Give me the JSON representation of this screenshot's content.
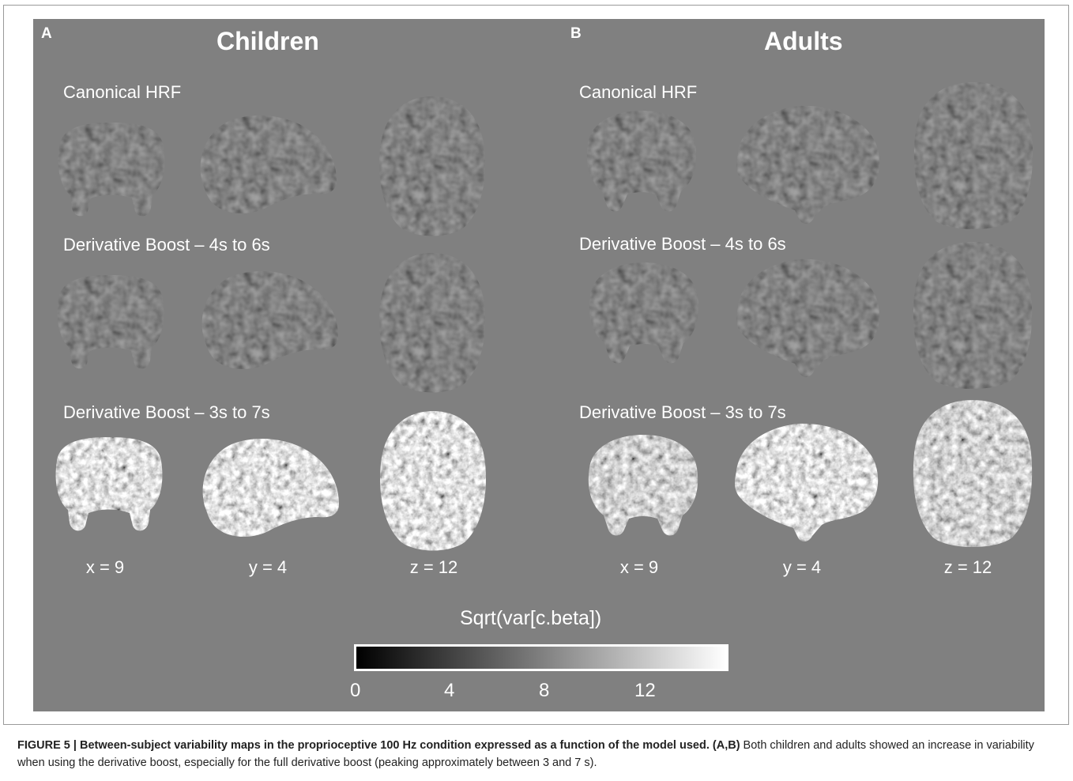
{
  "panels": {
    "a": {
      "letter": "A",
      "title": "Children"
    },
    "b": {
      "letter": "B",
      "title": "Adults"
    }
  },
  "rows": [
    "Canonical HRF",
    "Derivative Boost – 4s to 6s",
    "Derivative Boost – 3s to 7s"
  ],
  "coords": [
    "x = 9",
    "y = 4",
    "z = 12"
  ],
  "colorbar": {
    "title": "Sqrt(var[c.beta])",
    "ticks": [
      "0",
      "4",
      "8",
      "12"
    ],
    "colors": {
      "low": "#000000",
      "high": "#ffffff"
    }
  },
  "caption": {
    "bold": "FIGURE 5 | Between-subject variability maps in the proprioceptive 100 Hz condition expressed as a function of the model used. (A,B)",
    "text": " Both children and adults showed an increase in variability when using the derivative boost, especially for the full derivative boost (peaking approximately between 3 and 7 s)."
  }
}
